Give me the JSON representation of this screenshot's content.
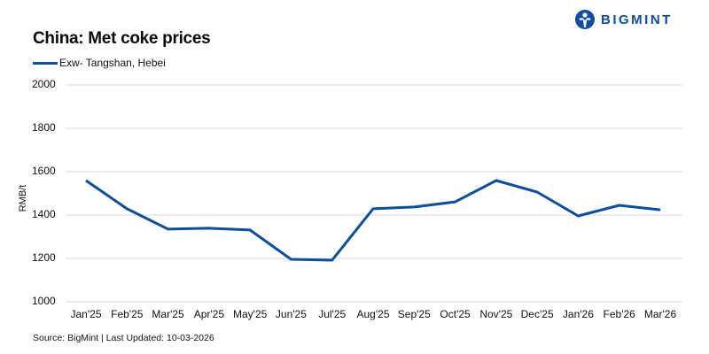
{
  "header": {
    "title": "China: Met coke prices",
    "logo_text": "BIGMINT",
    "brand_color": "#0b4ea2"
  },
  "legend": {
    "items": [
      {
        "label": "Exw- Tangshan, Hebei",
        "color": "#0b4ea2"
      }
    ]
  },
  "axes": {
    "ylabel": "RMB/t",
    "yticks": [
      "2000",
      "1800",
      "1600",
      "1400",
      "1200",
      "1000"
    ],
    "xticks": [
      "Jan'25",
      "Feb'25",
      "Mar'25",
      "Apr'25",
      "May'25",
      "Jun'25",
      "Jul'25",
      "Aug'25",
      "Sep'25",
      "Oct'25",
      "Nov'25",
      "Dec'25",
      "Jan'26",
      "Feb'26",
      "Mar'26"
    ]
  },
  "footer": {
    "source": "Source: BigMint | Last Updated: 10-03-2026"
  },
  "chart_data": {
    "type": "line",
    "title": "China: Met coke prices",
    "xlabel": "",
    "ylabel": "RMB/t",
    "categories": [
      "Jan'25",
      "Feb'25",
      "Mar'25",
      "Apr'25",
      "May'25",
      "Jun'25",
      "Jul'25",
      "Aug'25",
      "Sep'25",
      "Oct'25",
      "Nov'25",
      "Dec'25",
      "Jan'26",
      "Feb'26",
      "Mar'26"
    ],
    "series": [
      {
        "name": "Exw- Tangshan, Hebei",
        "color": "#0b4ea2",
        "values": [
          1559,
          1429,
          1335,
          1339,
          1331,
          1196,
          1192,
          1429,
          1437,
          1461,
          1559,
          1506,
          1396,
          1445,
          1424
        ]
      }
    ],
    "ylim": [
      1000,
      2000
    ],
    "yticks": [
      1000,
      1200,
      1400,
      1600,
      1800,
      2000
    ],
    "grid": "horizontal",
    "legend_position": "top-left"
  }
}
